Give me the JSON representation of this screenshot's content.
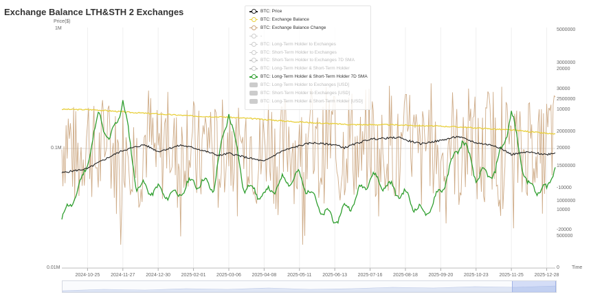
{
  "title": "Exchange Balance LTH&STH 2 Exchanges",
  "price_unit": "Price($)",
  "left_axis_labels": [
    "1M",
    "0.1M",
    "0.01M"
  ],
  "right_axis_time": "Time",
  "right_axis_labels": [
    "5000000",
    "3000000",
    "20000",
    "30000",
    "2500000",
    "10000",
    "2000000",
    "20000",
    "1500000",
    "-10000",
    "1000000",
    "10000",
    "-20000",
    "500000",
    "0"
  ],
  "x_labels": [
    "2024-10-25",
    "2024-11-27",
    "2024-12-30",
    "2025-02-01",
    "2025-03-06",
    "2025-04-08",
    "2025-05-11",
    "2025-06-13",
    "2025-07-16",
    "2025-08-18",
    "2025-09-20",
    "2025-10-23",
    "2025-11-25",
    "2025-12-28"
  ],
  "legend": [
    {
      "label": "BTC: Price",
      "color": "#222222",
      "style": "line-circle",
      "active": true
    },
    {
      "label": "BTC: Exchange Balance",
      "color": "#e8cf3a",
      "style": "line-circle",
      "active": true
    },
    {
      "label": "BTC: Exchange Balance Change",
      "color": "#c9a27a",
      "style": "line-circle",
      "active": true
    },
    {
      "label": "-",
      "color": "#cccccc",
      "style": "line-circle",
      "active": false
    },
    {
      "label": "BTC: Long-Term Holder to Exchanges",
      "color": "#cccccc",
      "style": "line-circle",
      "active": false
    },
    {
      "label": "BTC: Short-Term Holder to Exchanges",
      "color": "#cccccc",
      "style": "line-circle",
      "active": false
    },
    {
      "label": "BTC: Short-Term Holder to Exchanges 7D SMA",
      "color": "#cccccc",
      "style": "line-circle",
      "active": false
    },
    {
      "label": "BTC: Long-Term Holder & Short-Term Holder",
      "color": "#cccccc",
      "style": "line-circle",
      "active": false
    },
    {
      "label": "BTC: Long-Term Holder & Short-Term Holder 7D SMA",
      "color": "#2e9e2e",
      "style": "line-circle",
      "active": true
    },
    {
      "label": "BTC: Long-Term Holder to Exchanges [USD]",
      "color": "#cccccc",
      "style": "box",
      "active": false
    },
    {
      "label": "BTC: Short-Term Holder to Exchanges [USD]",
      "color": "#cccccc",
      "style": "box",
      "active": false
    },
    {
      "label": "BTC: Long-Term Holder & Short-Term Holder [USD]",
      "color": "#cccccc",
      "style": "box",
      "active": false
    }
  ],
  "chart_data": {
    "type": "line",
    "title": "Exchange Balance LTH&STH 2 Exchanges",
    "x": [
      "2024-10-01",
      "2026-01-05"
    ],
    "x_ticks": [
      "2024-10-25",
      "2024-11-27",
      "2024-12-30",
      "2025-02-01",
      "2025-03-06",
      "2025-04-08",
      "2025-05-11",
      "2025-06-13",
      "2025-07-16",
      "2025-08-18",
      "2025-09-20",
      "2025-10-23",
      "2025-11-25",
      "2025-12-28"
    ],
    "y_left": {
      "label": "Price($)",
      "scale": "log",
      "range": [
        10000,
        1000000
      ],
      "ticks": [
        "1M",
        "0.1M",
        "0.01M"
      ]
    },
    "grid": true,
    "legend_position": "top-center",
    "series": [
      {
        "name": "BTC: Price",
        "color": "#222222",
        "axis": "left-log",
        "points": [
          [
            "2024-10-01",
            62000
          ],
          [
            "2024-10-25",
            67000
          ],
          [
            "2024-11-10",
            80000
          ],
          [
            "2024-11-27",
            95000
          ],
          [
            "2024-12-17",
            106000
          ],
          [
            "2024-12-30",
            93000
          ],
          [
            "2025-01-20",
            105000
          ],
          [
            "2025-02-01",
            100000
          ],
          [
            "2025-02-25",
            86000
          ],
          [
            "2025-03-06",
            90000
          ],
          [
            "2025-03-20",
            84000
          ],
          [
            "2025-04-08",
            77000
          ],
          [
            "2025-04-25",
            94000
          ],
          [
            "2025-05-11",
            104000
          ],
          [
            "2025-05-22",
            110000
          ],
          [
            "2025-06-13",
            106000
          ],
          [
            "2025-06-22",
            100000
          ],
          [
            "2025-07-16",
            118000
          ],
          [
            "2025-08-14",
            122000
          ],
          [
            "2025-08-18",
            116000
          ],
          [
            "2025-09-01",
            108000
          ],
          [
            "2025-09-20",
            115000
          ],
          [
            "2025-10-06",
            124000
          ],
          [
            "2025-10-23",
            110000
          ],
          [
            "2025-11-10",
            104000
          ],
          [
            "2025-11-25",
            88000
          ],
          [
            "2025-12-10",
            92000
          ],
          [
            "2025-12-28",
            88000
          ],
          [
            "2026-01-05",
            91000
          ]
        ]
      },
      {
        "name": "BTC: Exchange Balance",
        "color": "#e8cf3a",
        "axis": "right",
        "points": [
          [
            "2024-10-01",
            3300000
          ],
          [
            "2024-11-01",
            3290000
          ],
          [
            "2024-12-01",
            3240000
          ],
          [
            "2025-01-01",
            3200000
          ],
          [
            "2025-02-01",
            3160000
          ],
          [
            "2025-03-01",
            3140000
          ],
          [
            "2025-04-01",
            3100000
          ],
          [
            "2025-05-01",
            3050000
          ],
          [
            "2025-06-01",
            3010000
          ],
          [
            "2025-07-01",
            2980000
          ],
          [
            "2025-08-01",
            2980000
          ],
          [
            "2025-09-01",
            2960000
          ],
          [
            "2025-10-01",
            2940000
          ],
          [
            "2025-11-01",
            2900000
          ],
          [
            "2025-12-01",
            2860000
          ],
          [
            "2026-01-05",
            2780000
          ]
        ]
      },
      {
        "name": "BTC: Exchange Balance Change",
        "color": "#c9a27a",
        "axis": "right-change",
        "range": [
          -30000,
          30000
        ],
        "note": "daily change oscillating roughly between -25000 and +27000"
      },
      {
        "name": "BTC: Long-Term Holder & Short-Term Holder 7D SMA",
        "color": "#2e9e2e",
        "axis": "right",
        "points": [
          [
            "2024-10-01",
            1000000
          ],
          [
            "2024-10-20",
            1800000
          ],
          [
            "2024-11-05",
            3200000
          ],
          [
            "2024-11-15",
            2600000
          ],
          [
            "2024-11-27",
            3500000
          ],
          [
            "2024-12-10",
            1700000
          ],
          [
            "2024-12-30",
            1600000
          ],
          [
            "2025-01-15",
            1500000
          ],
          [
            "2025-02-01",
            1800000
          ],
          [
            "2025-02-20",
            1700000
          ],
          [
            "2025-03-06",
            3300000
          ],
          [
            "2025-03-20",
            1700000
          ],
          [
            "2025-04-08",
            1500000
          ],
          [
            "2025-04-25",
            1800000
          ],
          [
            "2025-05-11",
            1900000
          ],
          [
            "2025-06-01",
            1200000
          ],
          [
            "2025-06-13",
            1000000
          ],
          [
            "2025-07-01",
            1400000
          ],
          [
            "2025-07-16",
            1900000
          ],
          [
            "2025-08-18",
            1500000
          ],
          [
            "2025-09-05",
            1100000
          ],
          [
            "2025-09-20",
            1600000
          ],
          [
            "2025-10-10",
            2700000
          ],
          [
            "2025-10-23",
            1900000
          ],
          [
            "2025-11-10",
            2000000
          ],
          [
            "2025-11-25",
            3200000
          ],
          [
            "2025-12-10",
            1700000
          ],
          [
            "2025-12-28",
            1600000
          ],
          [
            "2026-01-05",
            2200000
          ]
        ]
      }
    ]
  }
}
